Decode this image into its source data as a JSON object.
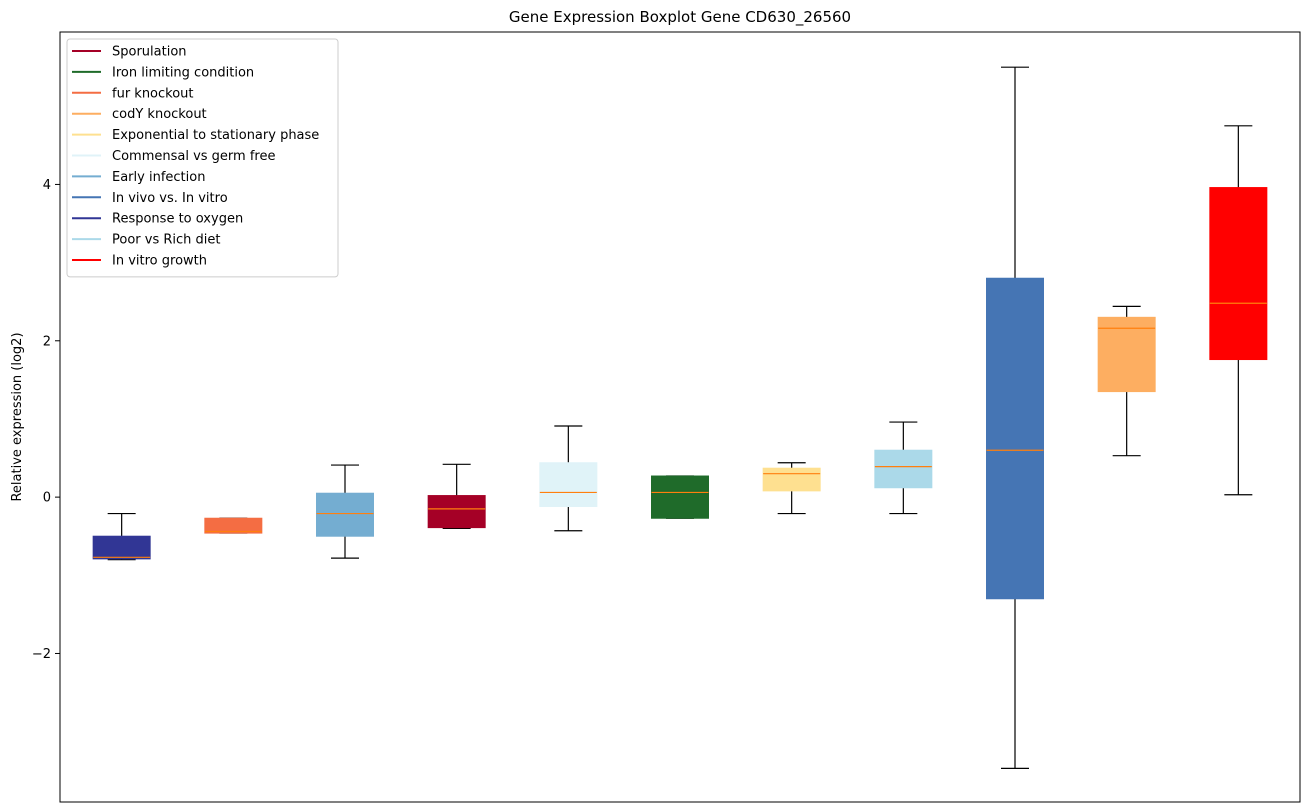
{
  "chart_data": {
    "type": "boxplot",
    "title": "Gene Expression Boxplot Gene CD630_26560",
    "xlabel": "",
    "ylabel": "Relative expression (log2)",
    "ylim": [
      -3.9,
      5.95
    ],
    "yticks": [
      -2,
      0,
      2,
      4
    ],
    "ytick_labels": [
      "−2",
      "0",
      "2",
      "4"
    ],
    "legend_location": "upper-left",
    "legend": [
      {
        "label": "Sporulation",
        "color": "#a50026"
      },
      {
        "label": "Iron limiting condition",
        "color": "#1f6b2a"
      },
      {
        "label": "fur knockout",
        "color": "#f46d43"
      },
      {
        "label": "codY knockout",
        "color": "#fdae61"
      },
      {
        "label": "Exponential to stationary phase",
        "color": "#fee090"
      },
      {
        "label": "Commensal vs germ free",
        "color": "#e0f3f8"
      },
      {
        "label": "Early infection",
        "color": "#74add1"
      },
      {
        "label": "In vivo vs. In vitro",
        "color": "#4575b4"
      },
      {
        "label": "Response to oxygen",
        "color": "#313695"
      },
      {
        "label": "Poor vs Rich diet",
        "color": "#abd9e9"
      },
      {
        "label": "In vitro growth",
        "color": "#ff0000"
      }
    ],
    "boxes": [
      {
        "group": "Response to oxygen",
        "color": "#313695",
        "whislo": -0.8,
        "q1": -0.79,
        "med": -0.77,
        "q3": -0.5,
        "whishi": -0.21
      },
      {
        "group": "fur knockout",
        "color": "#f46d43",
        "whislo": -0.46,
        "q1": -0.46,
        "med": -0.44,
        "q3": -0.27,
        "whishi": -0.27
      },
      {
        "group": "Early infection",
        "color": "#74add1",
        "whislo": -0.78,
        "q1": -0.5,
        "med": -0.21,
        "q3": 0.05,
        "whishi": 0.41
      },
      {
        "group": "Sporulation",
        "color": "#a50026",
        "whislo": -0.4,
        "q1": -0.39,
        "med": -0.15,
        "q3": 0.02,
        "whishi": 0.42
      },
      {
        "group": "Commensal vs germ free",
        "color": "#e0f3f8",
        "whislo": -0.43,
        "q1": -0.12,
        "med": 0.06,
        "q3": 0.44,
        "whishi": 0.91
      },
      {
        "group": "Iron limiting condition",
        "color": "#1f6b2a",
        "whislo": -0.27,
        "q1": -0.27,
        "med": 0.06,
        "q3": 0.27,
        "whishi": 0.27
      },
      {
        "group": "Exponential to stationary phase",
        "color": "#fee090",
        "whislo": -0.21,
        "q1": 0.08,
        "med": 0.3,
        "q3": 0.37,
        "whishi": 0.44
      },
      {
        "group": "Poor vs Rich diet",
        "color": "#abd9e9",
        "whislo": -0.21,
        "q1": 0.12,
        "med": 0.39,
        "q3": 0.6,
        "whishi": 0.96
      },
      {
        "group": "In vivo vs. In vitro",
        "color": "#4575b4",
        "whislo": -3.47,
        "q1": -1.3,
        "med": 0.6,
        "q3": 2.8,
        "whishi": 5.5
      },
      {
        "group": "codY knockout",
        "color": "#fdae61",
        "whislo": 0.53,
        "q1": 1.35,
        "med": 2.16,
        "q3": 2.3,
        "whishi": 2.44
      },
      {
        "group": "In vitro growth",
        "color": "#ff0000",
        "whislo": 0.03,
        "q1": 1.76,
        "med": 2.48,
        "q3": 3.96,
        "whishi": 4.75
      }
    ],
    "median_color": "#ff7f0e"
  }
}
